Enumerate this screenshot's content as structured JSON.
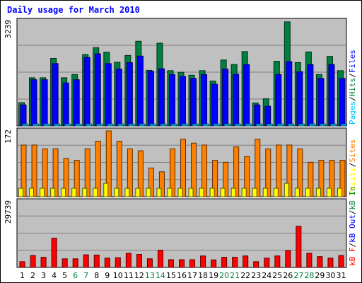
{
  "chart_data": {
    "type": "bar",
    "title": "Daily usage for March 2010",
    "categories": [
      "1",
      "2",
      "3",
      "4",
      "5",
      "6",
      "7",
      "8",
      "9",
      "10",
      "11",
      "12",
      "13",
      "14",
      "15",
      "16",
      "17",
      "18",
      "19",
      "20",
      "21",
      "22",
      "23",
      "24",
      "25",
      "26",
      "27",
      "28",
      "29",
      "30",
      "31"
    ],
    "weekend_days": [
      "6",
      "7",
      "13",
      "14",
      "20",
      "21",
      "27",
      "28"
    ],
    "colors": {
      "background": "#c0c0c0",
      "hits": "#008040",
      "files": "#0000ff",
      "pages": "#00c0ff",
      "visits": "#ffff00",
      "sites": "#ff8000",
      "kbin": "#008040",
      "kbout": "#0000ff",
      "kbf": "#ff0000",
      "weekday_label": "#000000",
      "weekend_label": "#008040",
      "title": "#0000ff"
    },
    "panels": [
      {
        "id": "hits-files-pages",
        "ymax": 3239,
        "ymax_label": "3239",
        "legend": [
          {
            "key": "pages",
            "label": "Pages"
          },
          {
            "key": "hits",
            "label": "Hits"
          },
          {
            "key": "files",
            "label": "Files"
          }
        ],
        "series": [
          {
            "key": "hits",
            "values": [
              720,
              1490,
              1490,
              2090,
              1490,
              1590,
              2210,
              2420,
              2280,
              1970,
              2180,
              2620,
              1720,
              2560,
              1710,
              1660,
              1570,
              1710,
              1390,
              2040,
              1900,
              2300,
              710,
              840,
              2000,
              3220,
              1960,
              2290,
              1590,
              2150,
              1710
            ]
          },
          {
            "key": "files",
            "values": [
              650,
              1430,
              1430,
              1930,
              1330,
              1430,
              2120,
              2230,
              1930,
              1760,
              1960,
              2160,
              1690,
              1770,
              1590,
              1530,
              1470,
              1590,
              1290,
              1760,
              1600,
              1900,
              650,
              610,
              1590,
              1990,
              1680,
              1900,
              1470,
              1900,
              1470
            ]
          },
          {
            "key": "pages",
            "values": [
              60,
              60,
              60,
              60,
              60,
              60,
              60,
              60,
              60,
              60,
              60,
              60,
              60,
              60,
              60,
              60,
              60,
              60,
              60,
              60,
              60,
              60,
              60,
              60,
              60,
              60,
              60,
              60,
              60,
              60,
              60
            ]
          }
        ]
      },
      {
        "id": "visits-sites",
        "ymax": 172,
        "ymax_label": "172",
        "legend": [
          {
            "key": "visits",
            "label": "Visits"
          },
          {
            "key": "sites",
            "label": "Sites"
          }
        ],
        "series": [
          {
            "key": "sites",
            "values": [
              135,
              135,
              125,
              125,
              100,
              95,
              125,
              145,
              172,
              145,
              125,
              120,
              75,
              65,
              125,
              150,
              140,
              135,
              95,
              90,
              130,
              105,
              150,
              125,
              135,
              135,
              125,
              90,
              95,
              95,
              95
            ]
          },
          {
            "key": "visits",
            "values": [
              22,
              22,
              22,
              22,
              22,
              22,
              22,
              22,
              35,
              22,
              22,
              22,
              22,
              22,
              22,
              22,
              22,
              22,
              22,
              22,
              22,
              22,
              22,
              22,
              22,
              35,
              22,
              22,
              22,
              22,
              22
            ]
          }
        ]
      },
      {
        "id": "kbytes",
        "ymax": 29739,
        "ymax_label": "29739",
        "legend": [
          {
            "key": "kbf",
            "label": "kB F"
          },
          {
            "key": "kbout",
            "label": "kB Out"
          },
          {
            "key": "kbin",
            "label": "kB In"
          }
        ],
        "series": [
          {
            "key": "kbf",
            "values": [
              2600,
              5400,
              4600,
              13200,
              3900,
              3900,
              5700,
              5600,
              4200,
              4400,
              6400,
              5900,
              3900,
              7800,
              3500,
              3500,
              3500,
              5200,
              3400,
              4600,
              4600,
              5200,
              2600,
              4200,
              5200,
              7600,
              18600,
              6400,
              4900,
              4200,
              5400
            ]
          }
        ]
      }
    ]
  }
}
